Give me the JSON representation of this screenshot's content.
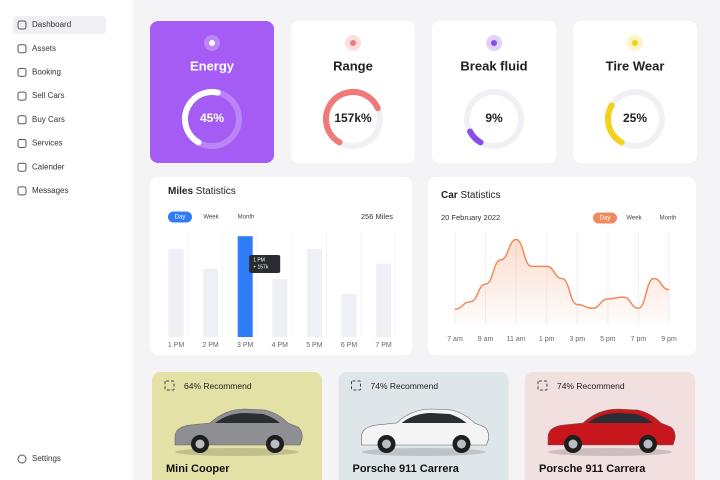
{
  "sidebar": {
    "items": [
      "Dashboard",
      "Assets",
      "Booking",
      "Sell Cars",
      "Buy Cars",
      "Services",
      "Calender",
      "Messages"
    ],
    "active": 0,
    "footer": "Settings"
  },
  "gauges": [
    {
      "title": "Energy",
      "label": "45%",
      "progress": 45,
      "card_color": "#a45cf5",
      "text_color": "#ffffff",
      "arc_color": "#ffffff"
    },
    {
      "title": "Range",
      "label": "157k%",
      "progress": 60,
      "card_color": "#ffffff",
      "text_color": "#222222",
      "arc_color": "#f07a7a"
    },
    {
      "title": "Break fluid",
      "label": "9%",
      "progress": 9,
      "card_color": "#ffffff",
      "text_color": "#222222",
      "arc_color": "#8a4de8"
    },
    {
      "title": "Tire Wear",
      "label": "25%",
      "progress": 25,
      "card_color": "#ffffff",
      "text_color": "#222222",
      "arc_color": "#f2d21b"
    }
  ],
  "miles_chart": {
    "type": "bar",
    "title": "Miles",
    "subtitle": "Statistics",
    "tabs": [
      "Day",
      "Week",
      "Month"
    ],
    "total": "256 Miles",
    "categories": [
      "1 PM",
      "2 PM",
      "3 PM",
      "4 PM",
      "5 PM",
      "6 PM",
      "7 PM"
    ],
    "values": [
      84,
      65,
      96,
      55,
      84,
      41,
      70
    ],
    "ylim": [
      0,
      100
    ],
    "highlight": 2,
    "tooltip": [
      "1 PM",
      "+ 157k"
    ],
    "color": "#2e7cf6"
  },
  "car_chart": {
    "type": "line",
    "title": "Car",
    "subtitle": "Statistics",
    "date": "20 February 2022",
    "tabs": [
      "Day",
      "Week",
      "Month"
    ],
    "categories": [
      "7 am",
      null,
      "9 am",
      null,
      "11 am",
      null,
      "1 pm",
      null,
      "3 pm",
      null,
      "5 pm",
      null,
      "7 pm",
      null,
      "9 pm"
    ],
    "values": [
      17,
      25,
      44,
      70,
      92,
      63,
      63,
      50,
      22,
      18,
      28,
      30,
      18,
      50,
      38
    ],
    "ylim": [
      0,
      100
    ],
    "color": "#f08a5d"
  },
  "cars": [
    {
      "recommend": "64% Recommend",
      "name": "Mini Cooper",
      "card_color": "#e3e1a6",
      "car_color": "#8d8f92"
    },
    {
      "recommend": "74% Recommend",
      "name": "Porsche 911 Carrera",
      "card_color": "#dfe6ea",
      "car_color": "#f4f4f4"
    },
    {
      "recommend": "74% Recommend",
      "name": "Porsche 911 Carrera",
      "card_color": "#f2dfe0",
      "car_color": "#c8161d"
    }
  ]
}
